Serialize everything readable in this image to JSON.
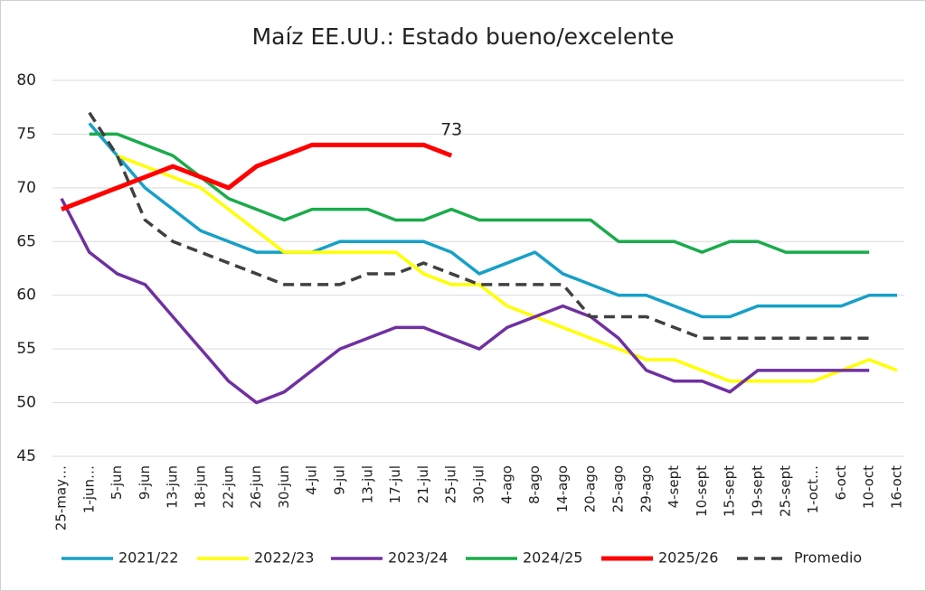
{
  "chart_data": {
    "type": "line",
    "title": "Maíz EE.UU.: Estado bueno/excelente",
    "categories": [
      "25-may…",
      "1-jun…",
      "5-jun",
      "9-jun",
      "13-jun",
      "18-jun",
      "22-jun",
      "26-jun",
      "30-jun",
      "4-jul",
      "9-jul",
      "13-jul",
      "17-jul",
      "21-jul",
      "25-jul",
      "30-jul",
      "4-ago",
      "8-ago",
      "14-ago",
      "20-ago",
      "25-ago",
      "29-ago",
      "4-sept",
      "10-sept",
      "15-sept",
      "19-sept",
      "25-sept",
      "1-oct…",
      "6-oct",
      "10-oct",
      "16-oct"
    ],
    "series": [
      {
        "name": "2021/22",
        "color": "#16a0c8",
        "values": [
          null,
          76,
          73,
          70,
          68,
          66,
          65,
          64,
          64,
          64,
          65,
          65,
          65,
          65,
          64,
          62,
          63,
          64,
          62,
          61,
          60,
          60,
          59,
          58,
          58,
          59,
          59,
          59,
          59,
          60,
          60
        ]
      },
      {
        "name": "2022/23",
        "color": "#ffff00",
        "values": [
          null,
          null,
          73,
          72,
          71,
          70,
          68,
          66,
          64,
          64,
          64,
          64,
          64,
          62,
          61,
          61,
          59,
          58,
          57,
          56,
          55,
          54,
          54,
          53,
          52,
          52,
          52,
          52,
          53,
          54,
          53
        ]
      },
      {
        "name": "2023/24",
        "color": "#7030a0",
        "values": [
          69,
          64,
          62,
          61,
          58,
          55,
          52,
          50,
          51,
          53,
          55,
          56,
          57,
          57,
          56,
          55,
          57,
          58,
          59,
          58,
          56,
          53,
          52,
          52,
          51,
          53,
          53,
          53,
          53,
          53,
          null
        ]
      },
      {
        "name": "2024/25",
        "color": "#1aab4b",
        "values": [
          null,
          75,
          75,
          74,
          73,
          71,
          69,
          68,
          67,
          68,
          68,
          68,
          67,
          67,
          68,
          67,
          67,
          67,
          67,
          67,
          65,
          65,
          65,
          64,
          65,
          65,
          64,
          64,
          64,
          64,
          null
        ]
      },
      {
        "name": "2025/26",
        "color": "#ff0000",
        "highlight": true,
        "values": [
          68,
          69,
          70,
          71,
          72,
          71,
          70,
          72,
          73,
          74,
          74,
          74,
          74,
          74,
          73,
          null,
          null,
          null,
          null,
          null,
          null,
          null,
          null,
          null,
          null,
          null,
          null,
          null,
          null,
          null,
          null
        ]
      },
      {
        "name": "Promedio",
        "color": "#404040",
        "dashed": true,
        "values": [
          null,
          77,
          73,
          67,
          65,
          64,
          63,
          62,
          61,
          61,
          61,
          62,
          62,
          63,
          62,
          61,
          61,
          61,
          61,
          58,
          58,
          58,
          57,
          56,
          56,
          56,
          56,
          56,
          56,
          56,
          null
        ]
      }
    ],
    "labeled_point": {
      "series": 4,
      "index": 14
    },
    "ylim": [
      45,
      80
    ],
    "yticks": [
      45,
      50,
      55,
      60,
      65,
      70,
      75,
      80
    ],
    "grid": true,
    "legend": "bottom"
  }
}
